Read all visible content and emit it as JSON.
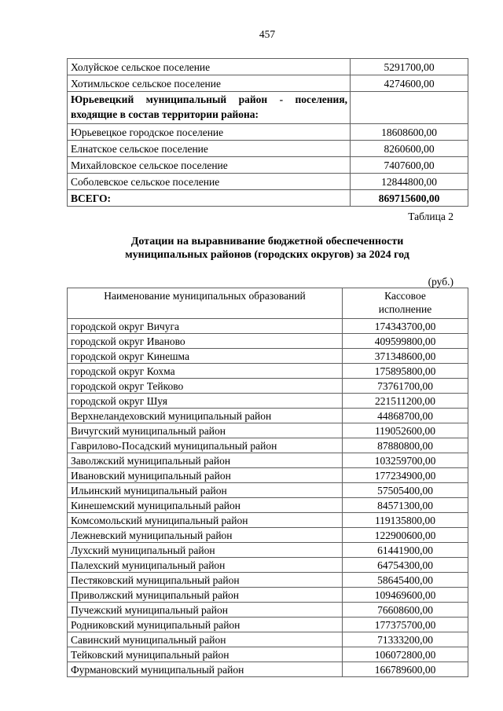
{
  "page": {
    "number": "457"
  },
  "table1": {
    "rows": [
      {
        "name": "Холуйское сельское поселение",
        "value": "5291700,00"
      },
      {
        "name": "Хотимльское сельское поселение",
        "value": "4274600,00"
      },
      {
        "name": "Юрьевецкий муниципальный район - поселения, входящие в состав территории района:",
        "value": ""
      },
      {
        "name": "Юрьевецкое городское поселение",
        "value": "18608600,00"
      },
      {
        "name": "Елнатское сельское поселение",
        "value": "8260600,00"
      },
      {
        "name": "Михайловское сельское поселение",
        "value": "7407600,00"
      },
      {
        "name": "Соболевское сельское поселение",
        "value": "12844800,00"
      },
      {
        "name": "ВСЕГО:",
        "value": "869715600,00"
      }
    ]
  },
  "table2_label": "Таблица 2",
  "title": {
    "line1": "Дотации на выравнивание бюджетной обеспеченности",
    "line2": "муниципальных районов (городских округов) за 2024 год"
  },
  "units_label": "(руб.)",
  "table2": {
    "header": {
      "col1": "Наименование муниципальных образований",
      "col2_lines": [
        "Кассовое",
        "исполнение"
      ]
    },
    "rows": [
      {
        "name": "городской округ Вичуга",
        "value": "174343700,00"
      },
      {
        "name": "городской округ Иваново",
        "value": "409599800,00"
      },
      {
        "name": "городской округ Кинешма",
        "value": "371348600,00"
      },
      {
        "name": "городской округ Кохма",
        "value": "175895800,00"
      },
      {
        "name": "городской округ Тейково",
        "value": "73761700,00"
      },
      {
        "name": "городской округ Шуя",
        "value": "221511200,00"
      },
      {
        "name": "Верхнеландеховский муниципальный район",
        "value": "44868700,00"
      },
      {
        "name": "Вичугский муниципальный район",
        "value": "119052600,00"
      },
      {
        "name": "Гаврилово-Посадский муниципальный район",
        "value": "87880800,00"
      },
      {
        "name": "Заволжский муниципальный район",
        "value": "103259700,00"
      },
      {
        "name": "Ивановский муниципальный район",
        "value": "177234900,00"
      },
      {
        "name": "Ильинский муниципальный район",
        "value": "57505400,00"
      },
      {
        "name": "Кинешемский муниципальный район",
        "value": "84571300,00"
      },
      {
        "name": "Комсомольский муниципальный район",
        "value": "119135800,00"
      },
      {
        "name": "Лежневский муниципальный район",
        "value": "122900600,00"
      },
      {
        "name": "Лухский муниципальный район",
        "value": "61441900,00"
      },
      {
        "name": "Палехский муниципальный район",
        "value": "64754300,00"
      },
      {
        "name": "Пестяковский муниципальный район",
        "value": "58645400,00"
      },
      {
        "name": "Приволжский муниципальный район",
        "value": "109469600,00"
      },
      {
        "name": "Пучежский муниципальный район",
        "value": "76608600,00"
      },
      {
        "name": "Родниковский муниципальный район",
        "value": "177375700,00"
      },
      {
        "name": "Савинский муниципальный район",
        "value": "71333200,00"
      },
      {
        "name": "Тейковский муниципальный район",
        "value": "106072800,00"
      },
      {
        "name": "Фурмановский муниципальный район",
        "value": "166789600,00"
      }
    ]
  }
}
